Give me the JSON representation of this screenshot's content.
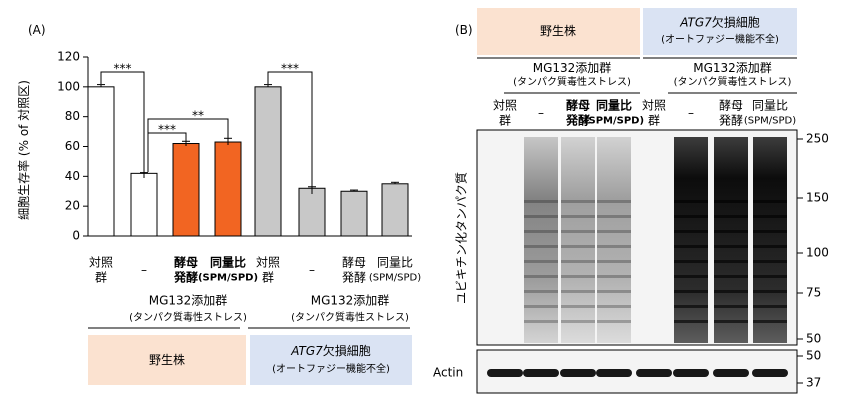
{
  "panel_labels": [
    "(A)",
    "(B)"
  ],
  "chart_data": {
    "type": "bar",
    "y_label": "細胞生存率 (% of 対照区)",
    "categories": [
      "対照\n群",
      "–",
      "酵母\n発酵",
      "同量比\n(SPM/SPD)",
      "対照\n群",
      "–",
      "酵母\n発酵",
      "同量比\n(SPM/SPD)"
    ],
    "label_colors": [
      "#000000",
      "#000000",
      "#e03020",
      "#e03020",
      "#000000",
      "#000000",
      "#000000",
      "#000000"
    ],
    "values": [
      100,
      42,
      62,
      63,
      100,
      32,
      30,
      35
    ],
    "errors": [
      1.5,
      0.5,
      1.5,
      2.5,
      1.5,
      1,
      0.8,
      1
    ],
    "colors": [
      "#ffffff",
      "#ffffff",
      "#f26522",
      "#f26522",
      "#c8c8c8",
      "#c8c8c8",
      "#c8c8c8",
      "#c8c8c8"
    ],
    "ylim": [
      0,
      120
    ],
    "yticks": [
      0,
      20,
      40,
      60,
      80,
      100,
      120
    ],
    "significance": [
      "***",
      "***",
      "**",
      "***"
    ]
  },
  "groups": {
    "treatment": [
      "MG132添加群\n(タンパク質毒性ストレス)",
      "MG132添加群\n(タンパク質毒性ストレス)"
    ],
    "strains": [
      "野生株",
      "ATG7欠損細胞\n(オートファジー機能不全)"
    ]
  },
  "blot": {
    "lanes": [
      "対照\n群",
      "–",
      "酵母\n発酵",
      "同量比\n(SPM/SPD)",
      "対照\n群",
      "–",
      "酵母\n発酵",
      "同量比\n(SPM/SPD)"
    ],
    "lane_colors": [
      "#000000",
      "#000000",
      "#e03020",
      "#e03020",
      "#000000",
      "#000000",
      "#000000",
      "#000000"
    ],
    "y_label": "ユビキチン化タンパク質",
    "markers": [
      250,
      150,
      100,
      75,
      50
    ],
    "loading_label": "Actin",
    "loading_markers": [
      50,
      37
    ]
  }
}
